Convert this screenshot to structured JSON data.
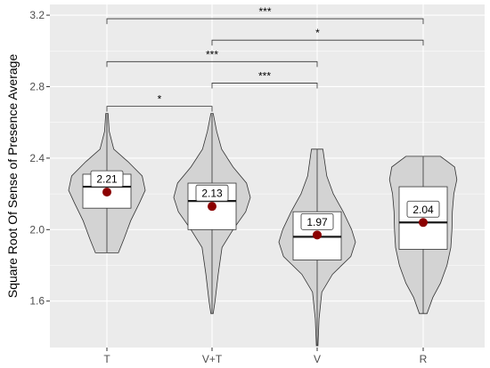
{
  "chart_data": {
    "type": "violin",
    "ylabel": "Square Root Of Sense of Presence Average",
    "xlabel": "",
    "ylim": [
      1.34,
      3.26
    ],
    "yticks": [
      "1.6",
      "2.0",
      "2.4",
      "2.8",
      "3.2"
    ],
    "grid": true,
    "categories": [
      "T",
      "V+T",
      "V",
      "R"
    ],
    "groups": [
      {
        "name": "T",
        "min": 1.87,
        "max": 2.65,
        "q1": 2.12,
        "median": 2.24,
        "q3": 2.31,
        "mean": 2.21,
        "mean_label": "2.21",
        "density": [
          [
            1.87,
            0.3
          ],
          [
            1.95,
            0.45
          ],
          [
            2.05,
            0.62
          ],
          [
            2.15,
            0.85
          ],
          [
            2.22,
            1.0
          ],
          [
            2.3,
            0.92
          ],
          [
            2.38,
            0.55
          ],
          [
            2.45,
            0.18
          ],
          [
            2.55,
            0.06
          ],
          [
            2.65,
            0.03
          ]
        ]
      },
      {
        "name": "V+T",
        "min": 1.53,
        "max": 2.65,
        "q1": 2.0,
        "median": 2.16,
        "q3": 2.26,
        "mean": 2.13,
        "mean_label": "2.13",
        "density": [
          [
            1.53,
            0.03
          ],
          [
            1.6,
            0.08
          ],
          [
            1.75,
            0.16
          ],
          [
            1.9,
            0.26
          ],
          [
            2.0,
            0.55
          ],
          [
            2.1,
            0.88
          ],
          [
            2.18,
            1.0
          ],
          [
            2.26,
            0.9
          ],
          [
            2.35,
            0.55
          ],
          [
            2.45,
            0.25
          ],
          [
            2.55,
            0.12
          ],
          [
            2.65,
            0.03
          ]
        ]
      },
      {
        "name": "V",
        "min": 1.35,
        "max": 2.45,
        "q1": 1.83,
        "median": 1.96,
        "q3": 2.1,
        "mean": 1.97,
        "mean_label": "1.97",
        "density": [
          [
            1.35,
            0.02
          ],
          [
            1.5,
            0.05
          ],
          [
            1.65,
            0.12
          ],
          [
            1.75,
            0.4
          ],
          [
            1.85,
            0.88
          ],
          [
            1.93,
            1.0
          ],
          [
            2.0,
            0.9
          ],
          [
            2.1,
            0.68
          ],
          [
            2.2,
            0.42
          ],
          [
            2.3,
            0.25
          ],
          [
            2.45,
            0.15
          ]
        ]
      },
      {
        "name": "R",
        "min": 1.53,
        "max": 2.41,
        "q1": 1.89,
        "median": 2.04,
        "q3": 2.24,
        "mean": 2.04,
        "mean_label": "2.04",
        "density": [
          [
            1.53,
            0.1
          ],
          [
            1.62,
            0.25
          ],
          [
            1.7,
            0.45
          ],
          [
            1.8,
            0.62
          ],
          [
            1.9,
            0.72
          ],
          [
            2.0,
            0.75
          ],
          [
            2.1,
            0.76
          ],
          [
            2.2,
            0.8
          ],
          [
            2.28,
            0.88
          ],
          [
            2.35,
            0.82
          ],
          [
            2.41,
            0.45
          ]
        ]
      }
    ],
    "comparisons": [
      {
        "from": "T",
        "to": "V+T",
        "y": 2.69,
        "label": "*"
      },
      {
        "from": "V+T",
        "to": "V",
        "y": 2.82,
        "label": "***"
      },
      {
        "from": "T",
        "to": "V",
        "y": 2.94,
        "label": "***"
      },
      {
        "from": "V+T",
        "to": "R",
        "y": 3.06,
        "label": "*"
      },
      {
        "from": "T",
        "to": "R",
        "y": 3.18,
        "label": "***"
      }
    ]
  },
  "colors": {
    "panel": "#ebebeb",
    "grid": "#ffffff",
    "violin_fill": "#d3d3d3",
    "violin_stroke": "#333333",
    "box_fill": "#ffffff",
    "mean_point": "#8b0000"
  }
}
